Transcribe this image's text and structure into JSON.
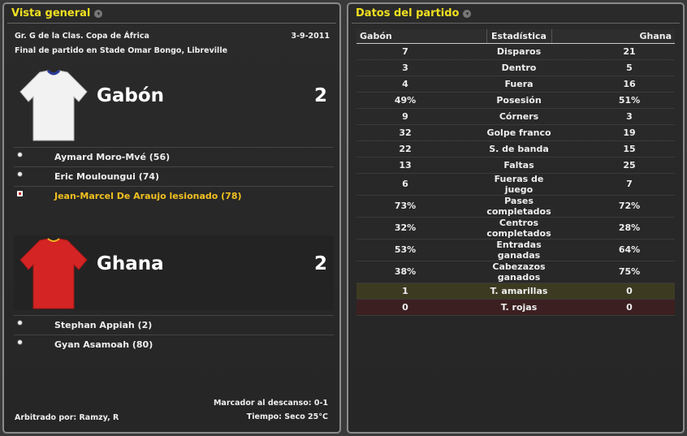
{
  "overview": {
    "title": "Vista general",
    "competition": "Gr. G de la Clas. Copa de África",
    "date": "3-9-2011",
    "venue": "Final de partido en Stade Omar Bongo, Libreville",
    "home": {
      "name": "Gabón",
      "score": "2",
      "shirt_color": "#f2f2f2",
      "trim_color": "#2a3a9a",
      "events": [
        {
          "icon": "ball-icon",
          "text": "Aymard Moro-Mvé (56)"
        },
        {
          "icon": "ball-icon",
          "text": "Eric Mouloungui (74)"
        },
        {
          "icon": "injury-icon",
          "text": "Jean-Marcel De Araujo lesionado (78)",
          "highlight": true
        }
      ]
    },
    "away": {
      "name": "Ghana",
      "score": "2",
      "shirt_color": "#d42424",
      "trim_color": "#f0b020",
      "events": [
        {
          "icon": "ball-icon",
          "text": "Stephan Appiah (2)"
        },
        {
          "icon": "ball-icon",
          "text": "Gyan Asamoah (80)"
        }
      ]
    },
    "halftime": "Marcador al descanso: 0-1",
    "weather": "Tiempo: Seco 25°C",
    "referee": "Arbitrado por: Ramzy, R"
  },
  "stats": {
    "title": "Datos del partido",
    "headers": [
      "Gabón",
      "Estadística",
      "Ghana"
    ],
    "rows": [
      [
        "7",
        "Disparos",
        "21"
      ],
      [
        "3",
        "Dentro",
        "5"
      ],
      [
        "4",
        "Fuera",
        "16"
      ],
      [
        "49%",
        "Posesión",
        "51%"
      ],
      [
        "9",
        "Córners",
        "3"
      ],
      [
        "32",
        "Golpe franco",
        "19"
      ],
      [
        "22",
        "S. de banda",
        "15"
      ],
      [
        "13",
        "Faltas",
        "25"
      ],
      [
        "6",
        "Fueras de juego",
        "7"
      ],
      [
        "73%",
        "Pases completados",
        "72%"
      ],
      [
        "32%",
        "Centros completados",
        "28%"
      ],
      [
        "53%",
        "Entradas ganadas",
        "64%"
      ],
      [
        "38%",
        "Cabezazos ganados",
        "75%"
      ],
      [
        "1",
        "T. amarillas",
        "0"
      ],
      [
        "0",
        "T. rojas",
        "0"
      ]
    ]
  }
}
